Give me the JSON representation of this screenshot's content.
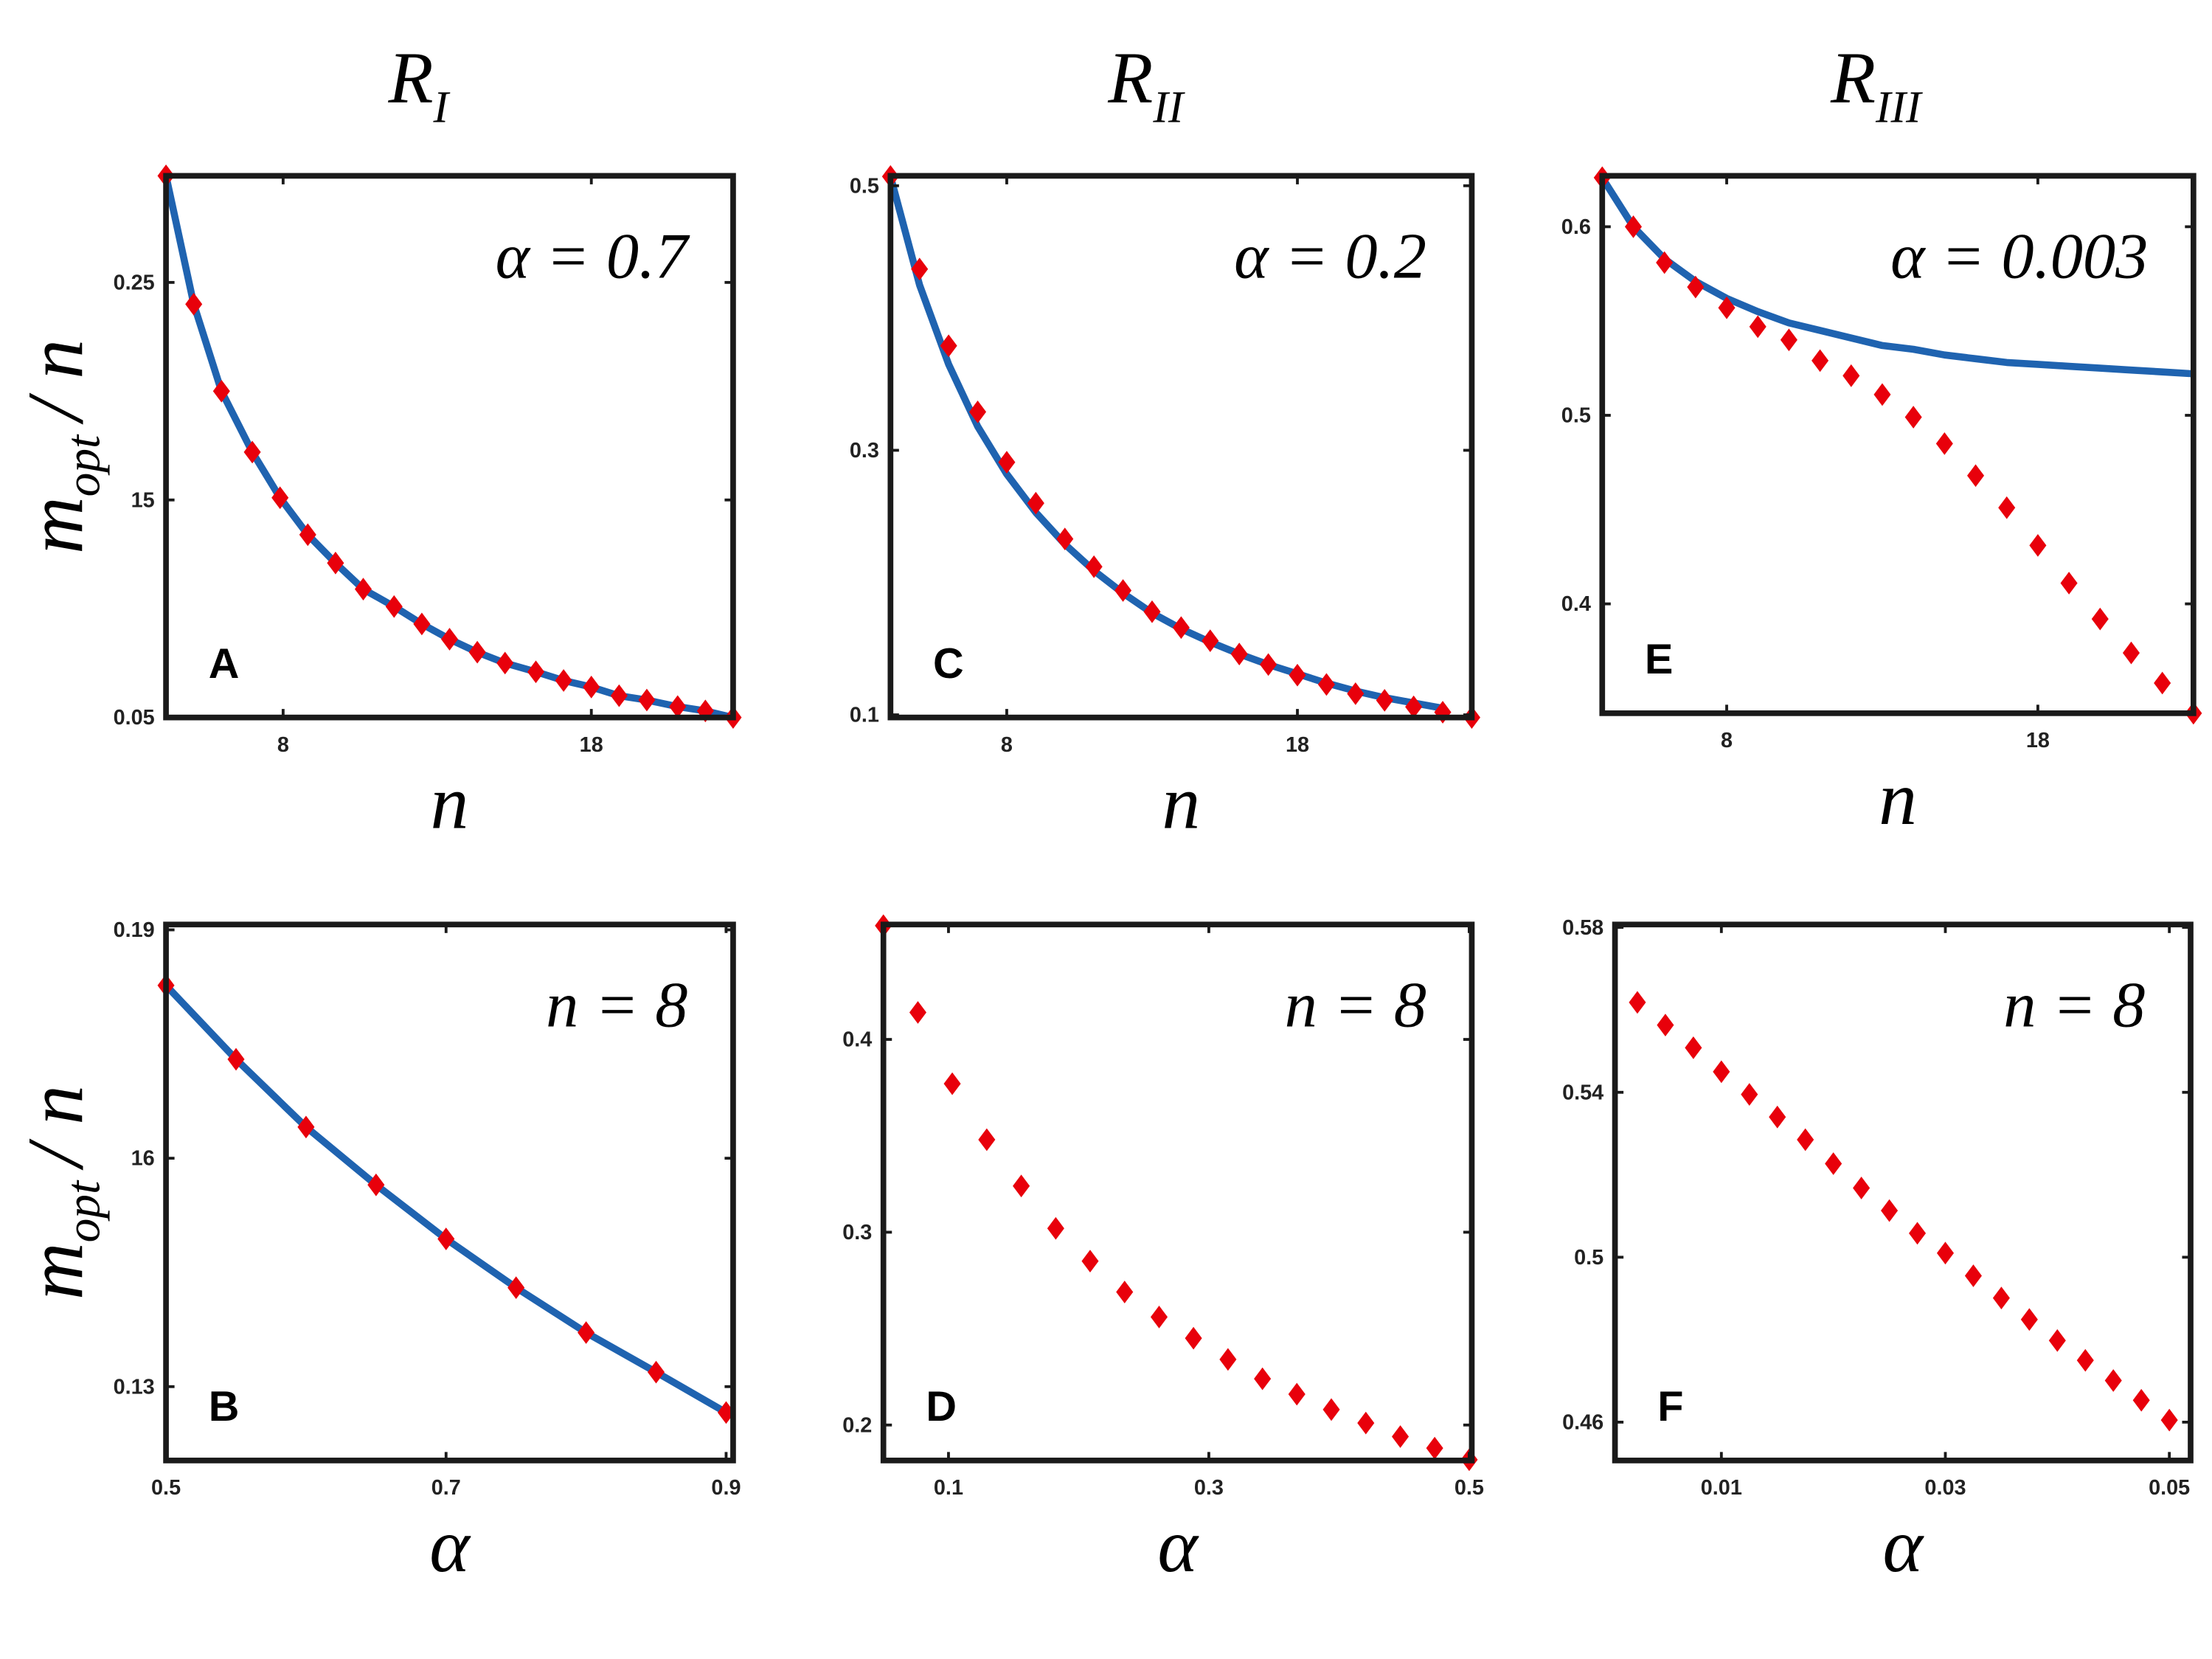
{
  "column_titles": [
    {
      "main": "R",
      "subscript": "I"
    },
    {
      "main": "R",
      "subscript": "II"
    },
    {
      "main": "R",
      "subscript": "III"
    }
  ],
  "chart_data": [
    {
      "type": "line",
      "label": "A",
      "annotation": "α = 0.7",
      "xlabel": "n",
      "ylabel": {
        "main": "m",
        "subscript": "opt",
        "rest": "/ n"
      },
      "xlim": [
        4.2,
        22.6
      ],
      "xticks": [
        8,
        18
      ],
      "ylim": [
        0.05,
        0.299
      ],
      "yticks": [
        0.05,
        {
          "value": 0.15,
          "label": "15"
        },
        0.25
      ],
      "x": [
        4.2,
        5.1,
        6.0,
        7.0,
        7.9,
        8.8,
        9.7,
        10.6,
        11.6,
        12.5,
        13.4,
        14.3,
        15.2,
        16.2,
        17.1,
        18.0,
        18.9,
        19.8,
        20.8,
        21.7,
        22.6
      ],
      "series": [
        {
          "style": "line",
          "color": "#1f63b0",
          "values": [
            0.299,
            0.24,
            0.2,
            0.172,
            0.151,
            0.134,
            0.121,
            0.109,
            0.101,
            0.093,
            0.086,
            0.08,
            0.075,
            0.071,
            0.067,
            0.064,
            0.06,
            0.058,
            0.055,
            0.053,
            0.05
          ]
        },
        {
          "style": "marker",
          "color": "#e8000b",
          "values": [
            0.299,
            0.24,
            0.2,
            0.172,
            0.151,
            0.134,
            0.121,
            0.109,
            0.101,
            0.093,
            0.086,
            0.08,
            0.075,
            0.071,
            0.067,
            0.064,
            0.06,
            0.058,
            0.055,
            0.053,
            0.05
          ]
        }
      ]
    },
    {
      "type": "line",
      "label": "C",
      "annotation": "α = 0.2",
      "xlabel": "n",
      "xlim": [
        4,
        24
      ],
      "xticks": [
        8,
        18
      ],
      "ylim": [
        0.098,
        0.5075
      ],
      "yticks": [
        0.1,
        0.3,
        0.5
      ],
      "x": [
        4,
        5,
        6,
        7,
        8,
        9,
        10,
        11,
        12,
        13,
        14,
        15,
        16,
        17,
        18,
        19,
        20,
        21,
        22,
        23,
        24
      ],
      "series": [
        {
          "style": "line",
          "color": "#1f63b0",
          "values": [
            0.507,
            0.425,
            0.365,
            0.318,
            0.282,
            0.253,
            0.229,
            0.209,
            0.192,
            0.177,
            0.165,
            0.155,
            0.146,
            0.138,
            0.131,
            0.124,
            0.118,
            0.113,
            0.109,
            0.105,
            null
          ]
        },
        {
          "style": "marker",
          "color": "#e8000b",
          "values": [
            0.507,
            0.437,
            0.379,
            0.329,
            0.291,
            0.26,
            0.233,
            0.212,
            0.194,
            0.178,
            0.166,
            0.156,
            0.146,
            0.138,
            0.13,
            0.123,
            0.116,
            0.111,
            0.106,
            0.102,
            0.098
          ]
        }
      ]
    },
    {
      "type": "line",
      "label": "E",
      "annotation": "α = 0.003",
      "xlabel": "n",
      "xlim": [
        4,
        23
      ],
      "xticks": [
        8,
        18
      ],
      "ylim": [
        0.342,
        0.627
      ],
      "yticks": [
        0.4,
        0.5,
        0.6
      ],
      "x": [
        4,
        5,
        6,
        7,
        8,
        9,
        10,
        11,
        12,
        13,
        14,
        15,
        16,
        17,
        18,
        19,
        20,
        21,
        22,
        23
      ],
      "series": [
        {
          "style": "line",
          "color": "#1f63b0",
          "values": [
            0.626,
            0.6,
            0.583,
            0.571,
            0.562,
            0.555,
            0.549,
            0.545,
            0.541,
            0.537,
            0.535,
            0.532,
            0.53,
            0.528,
            0.527,
            0.526,
            0.525,
            0.524,
            0.523,
            0.522
          ]
        },
        {
          "style": "marker",
          "color": "#e8000b",
          "values": [
            0.626,
            0.6,
            0.581,
            0.568,
            0.557,
            0.547,
            0.54,
            0.529,
            0.521,
            0.511,
            0.499,
            0.485,
            0.468,
            0.451,
            0.431,
            0.411,
            0.392,
            0.374,
            0.358,
            0.342
          ]
        }
      ]
    },
    {
      "type": "line",
      "label": "B",
      "annotation": "n = 8",
      "xlabel": "α",
      "ylabel": {
        "main": "m",
        "subscript": "opt",
        "rest": "/ n"
      },
      "xlim": [
        0.5,
        0.905
      ],
      "xticks": [
        0.5,
        0.7,
        0.9
      ],
      "ylim": [
        0.1203,
        0.1907
      ],
      "yticks": [
        0.13,
        {
          "value": 0.16,
          "label": "16"
        },
        0.19
      ],
      "x": [
        0.5,
        0.55,
        0.6,
        0.65,
        0.7,
        0.75,
        0.8,
        0.85,
        0.9
      ],
      "series": [
        {
          "style": "line",
          "color": "#1f63b0",
          "values": [
            0.1827,
            0.173,
            0.1641,
            0.1565,
            0.1494,
            0.143,
            0.1371,
            0.1319,
            0.1266
          ]
        },
        {
          "style": "marker",
          "color": "#e8000b",
          "values": [
            0.1827,
            0.173,
            0.1641,
            0.1565,
            0.1494,
            0.143,
            0.1371,
            0.1319,
            0.1266
          ]
        }
      ]
    },
    {
      "type": "line",
      "label": "D",
      "annotation": "n = 8",
      "xlabel": "α",
      "xlim": [
        0.05,
        0.502
      ],
      "xticks": [
        0.1,
        0.3,
        0.5
      ],
      "ylim": [
        0.1816,
        0.4596
      ],
      "yticks": [
        0.2,
        0.3,
        0.4
      ],
      "x": [
        0.05,
        0.0765,
        0.1029,
        0.1294,
        0.1559,
        0.1824,
        0.2088,
        0.2353,
        0.2618,
        0.2882,
        0.3147,
        0.3412,
        0.3676,
        0.3941,
        0.4206,
        0.4471,
        0.4735,
        0.5
      ],
      "series": [
        {
          "style": "marker",
          "color": "#e8000b",
          "values": [
            0.459,
            0.414,
            0.377,
            0.348,
            0.324,
            0.302,
            0.285,
            0.269,
            0.256,
            0.245,
            0.234,
            0.224,
            0.216,
            0.208,
            0.201,
            0.194,
            0.188,
            0.182
          ]
        }
      ]
    },
    {
      "type": "line",
      "label": "F",
      "annotation": "n = 8",
      "xlabel": "α",
      "xlim": [
        0.0005,
        0.0519
      ],
      "xticks": [
        0.01,
        0.03,
        0.05
      ],
      "ylim": [
        0.4507,
        0.5807
      ],
      "yticks": [
        0.46,
        0.5,
        0.54,
        0.58
      ],
      "x": [
        0.0025,
        0.005,
        0.0075,
        0.01,
        0.0125,
        0.015,
        0.0175,
        0.02,
        0.0225,
        0.025,
        0.0275,
        0.03,
        0.0325,
        0.035,
        0.0375,
        0.04,
        0.0425,
        0.045,
        0.0475,
        0.05
      ],
      "series": [
        {
          "style": "marker",
          "color": "#e8000b",
          "values": [
            0.5618,
            0.5563,
            0.5508,
            0.545,
            0.5395,
            0.534,
            0.5285,
            0.5227,
            0.5168,
            0.5113,
            0.5058,
            0.501,
            0.4955,
            0.4901,
            0.4849,
            0.4798,
            0.475,
            0.4701,
            0.4653,
            0.4605
          ]
        }
      ]
    }
  ]
}
